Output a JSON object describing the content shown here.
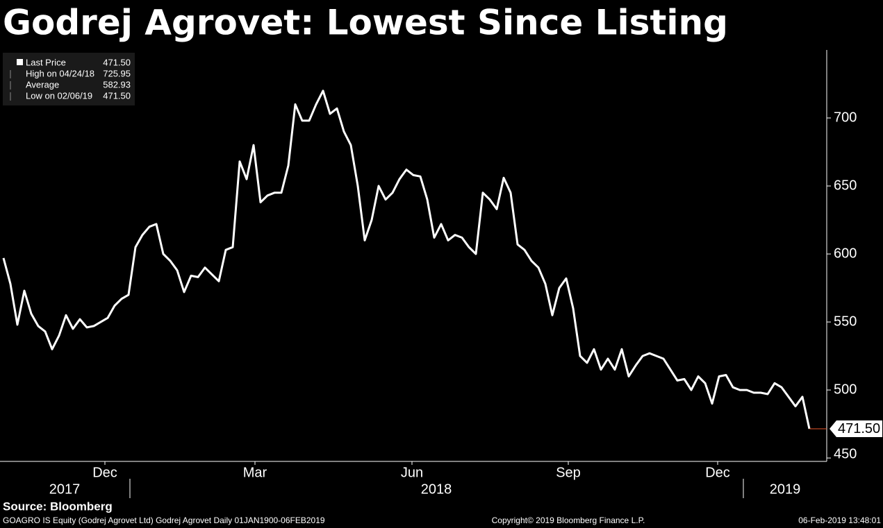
{
  "chart_data": {
    "type": "line",
    "title": "Godrej Agrovet: Lowest Since Listing",
    "series": [
      {
        "name": "Last Price",
        "color": "#ffffff",
        "values": [
          597,
          578,
          548,
          573,
          556,
          547,
          543,
          530,
          540,
          555,
          545,
          552,
          546,
          547,
          550,
          553,
          562,
          567,
          570,
          605,
          614,
          620,
          622,
          600,
          595,
          588,
          572,
          584,
          583,
          590,
          585,
          580,
          603,
          605,
          668,
          655,
          680,
          638,
          643,
          645,
          645,
          665,
          710,
          698,
          698,
          710,
          720,
          703,
          707,
          690,
          680,
          650,
          610,
          625,
          650,
          640,
          645,
          655,
          662,
          658,
          657,
          640,
          612,
          622,
          610,
          614,
          612,
          605,
          600,
          645,
          640,
          633,
          656,
          645,
          607,
          603,
          595,
          590,
          578,
          555,
          575,
          582,
          560,
          525,
          520,
          530,
          515,
          523,
          515,
          530,
          510,
          518,
          525,
          527,
          525,
          523,
          515,
          507,
          508,
          500,
          510,
          505,
          490,
          510,
          511,
          502,
          500,
          500,
          498,
          498,
          497,
          505,
          502,
          495,
          488,
          495,
          471.5
        ]
      }
    ],
    "legend_stats": [
      {
        "label": "High on 04/24/18",
        "value": "725.95"
      },
      {
        "label": "Average",
        "value": "582.93"
      },
      {
        "label": "Low on 02/06/19",
        "value": "471.50"
      }
    ],
    "last_value": "471.50",
    "last_price": {
      "value": 471.5,
      "label": "471.50"
    },
    "xlim": [
      -0.5,
      118.5
    ],
    "xticks": [
      {
        "value": 14.6,
        "label": "Dec"
      },
      {
        "value": 36.2,
        "label": "Mar"
      },
      {
        "value": 58.8,
        "label": "Jun"
      },
      {
        "value": 81.3,
        "label": "Sep"
      },
      {
        "value": 102.8,
        "label": "Dec"
      }
    ],
    "year_labels": [
      {
        "value": 8.8,
        "label": "2017"
      },
      {
        "value": 62.3,
        "label": "2018"
      },
      {
        "value": 112.5,
        "label": "2019"
      }
    ],
    "ylim": [
      447.5,
      750
    ],
    "yticks": [
      450,
      500,
      550,
      600,
      650,
      700
    ],
    "source": "Source: Bloomberg",
    "footer_left": "GOAGRO IS Equity (Godrej Agrovet Ltd) Godrej Agrovet  Daily 01JAN1900-06FEB2019",
    "footer_center": "Copyright© 2019 Bloomberg Finance L.P.",
    "footer_right": "06-Feb-2019 13:48:01"
  }
}
